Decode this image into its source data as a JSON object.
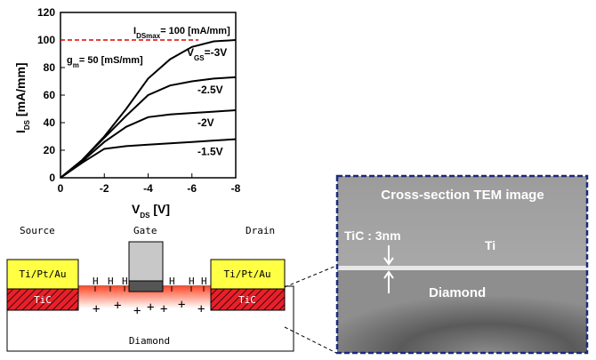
{
  "chart_data": {
    "type": "line",
    "x": [
      0,
      -1,
      -2,
      -3,
      -4,
      -5,
      -6,
      -7,
      -8
    ],
    "series": [
      {
        "name": "-3V",
        "color": "#000000",
        "values": [
          0,
          13,
          30,
          50,
          72,
          86,
          95,
          99,
          100
        ]
      },
      {
        "name": "-2.5V",
        "color": "#000000",
        "values": [
          0,
          13,
          29,
          45,
          60,
          67,
          70,
          72,
          73
        ]
      },
      {
        "name": "-2V",
        "color": "#000000",
        "values": [
          0,
          12,
          26,
          37,
          44,
          46,
          47,
          48,
          49
        ]
      },
      {
        "name": "-1.5V",
        "color": "#000000",
        "values": [
          0,
          11,
          21,
          23,
          24,
          25,
          26,
          27,
          28
        ]
      }
    ],
    "series_prefix": {
      "main": "V",
      "sub": "GS",
      "rest": "="
    },
    "xlim": [
      0,
      -8
    ],
    "xticks": [
      0,
      -2,
      -4,
      -6,
      -8
    ],
    "ylim": [
      0,
      120
    ],
    "yticks": [
      0,
      20,
      40,
      60,
      80,
      100,
      120
    ],
    "x_label": {
      "main": "V",
      "sub": "DS",
      "rest": " [V]"
    },
    "y_label": {
      "main": "I",
      "sub": "DS",
      "rest": " [mA/mm]"
    },
    "reference_line": {
      "y": 100,
      "x": [
        0,
        -6.3
      ],
      "color": "#e00000"
    },
    "annotations": [
      {
        "main": "I",
        "sub": "DSmax",
        "rest": "= 100 [mA/mm]"
      },
      {
        "main": "g",
        "sub": "m",
        "rest": "= 50 [mS/mm]"
      }
    ]
  },
  "diagram": {
    "source": "Source",
    "gate": "Gate",
    "drain": "Drain",
    "metal": "Ti/Pt/Au",
    "tic": "TiC",
    "substrate": "Diamond",
    "h": "H",
    "plus": "+"
  },
  "tem": {
    "title": "Cross-section TEM image",
    "tic": "TiC : 3nm",
    "ti": "Ti",
    "diamond": "Diamond"
  }
}
